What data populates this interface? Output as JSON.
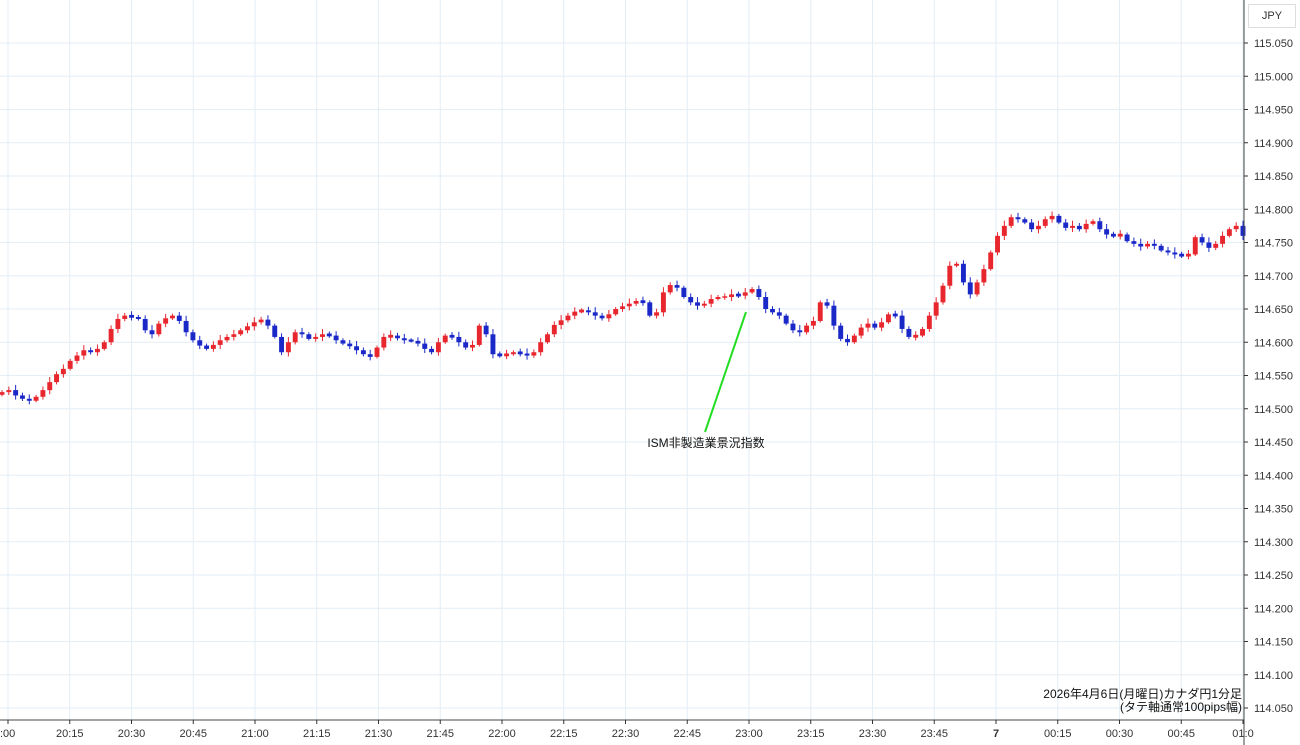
{
  "currency_label": "JPY",
  "annotation": {
    "text": "ISM非製造業景況指数",
    "time": "23:00"
  },
  "caption": {
    "line1": "2026年4月6日(月曜日)カナダ円1分足",
    "line2": "(タテ軸通常100pips幅)"
  },
  "colors": {
    "up": "#e8262e",
    "down": "#1a28c8",
    "grid": "#e3eef5",
    "axis": "#333333",
    "annotation_line": "#22dd22"
  },
  "chart_data": {
    "type": "candlestick",
    "title": "",
    "xlabel": "",
    "ylabel": "",
    "ylim": [
      114.035,
      115.065
    ],
    "yticks": [
      "115.050",
      "115.000",
      "114.950",
      "114.900",
      "114.850",
      "114.800",
      "114.750",
      "114.700",
      "114.650",
      "114.600",
      "114.550",
      "114.500",
      "114.450",
      "114.400",
      "114.350",
      "114.300",
      "114.250",
      "114.200",
      "114.150",
      "114.100",
      "114.050"
    ],
    "xticks": [
      ":00",
      "20:15",
      "20:30",
      "20:45",
      "21:00",
      "21:15",
      "21:30",
      "21:45",
      "22:00",
      "22:15",
      "22:30",
      "22:45",
      "23:00",
      "23:15",
      "23:30",
      "23:45",
      "7",
      "00:15",
      "00:30",
      "00:45",
      "01:0"
    ],
    "grid": true,
    "legend": "none",
    "series": [
      {
        "values": [
          114.525,
          114.528,
          114.52,
          114.515,
          114.512,
          114.518,
          114.528,
          114.54,
          114.552,
          114.56,
          114.572,
          114.58,
          114.588,
          114.585,
          114.59,
          114.6,
          114.62,
          114.635,
          114.64,
          114.638,
          114.635,
          114.618,
          114.612,
          114.628,
          114.636,
          114.64,
          114.632,
          114.615,
          114.603,
          114.595,
          114.59,
          114.596,
          114.603,
          114.608,
          114.612,
          114.618,
          114.624,
          114.63,
          114.634,
          114.625,
          114.608,
          114.585,
          114.6,
          114.615,
          114.612,
          114.605,
          114.608,
          114.612,
          114.61,
          114.603,
          114.598,
          114.594,
          114.588,
          114.582,
          114.578,
          114.592,
          114.608,
          114.61,
          114.606,
          114.603,
          114.602,
          114.598,
          114.59,
          114.585,
          114.6,
          114.61,
          114.608,
          114.6,
          114.592,
          114.596,
          114.625,
          114.612,
          114.582,
          114.58,
          114.582,
          114.585,
          114.583,
          114.58,
          114.585,
          114.6,
          114.612,
          114.626,
          114.633,
          114.64,
          114.646,
          114.648,
          114.645,
          114.64,
          114.636,
          114.642,
          114.65,
          114.654,
          114.658,
          114.662,
          114.66,
          114.64,
          114.645,
          114.675,
          114.686,
          114.682,
          114.668,
          114.66,
          114.655,
          114.658,
          114.665,
          114.668,
          114.668,
          114.672,
          114.67,
          114.675,
          114.68,
          114.668,
          114.65,
          114.645,
          114.64,
          114.628,
          114.618,
          114.615,
          114.625,
          114.632,
          114.66,
          114.655,
          114.625,
          114.605,
          114.6,
          114.61,
          114.622,
          114.628,
          114.622,
          114.63,
          114.642,
          114.64,
          114.62,
          114.608,
          114.61,
          114.62,
          114.64,
          114.66,
          114.685,
          114.715,
          114.718,
          114.69,
          114.672,
          114.69,
          114.71,
          114.735,
          114.76,
          114.775,
          114.788,
          114.785,
          114.78,
          114.77,
          114.775,
          114.785,
          114.79,
          114.78,
          114.772,
          114.775,
          114.77,
          114.778,
          114.782,
          114.77,
          114.762,
          114.76,
          114.762,
          114.752,
          114.748,
          114.744,
          114.748,
          114.745,
          114.738,
          114.735,
          114.732,
          114.73,
          114.732,
          114.758,
          114.75,
          114.742,
          114.748,
          114.76,
          114.77,
          114.775,
          114.76
        ]
      }
    ]
  }
}
